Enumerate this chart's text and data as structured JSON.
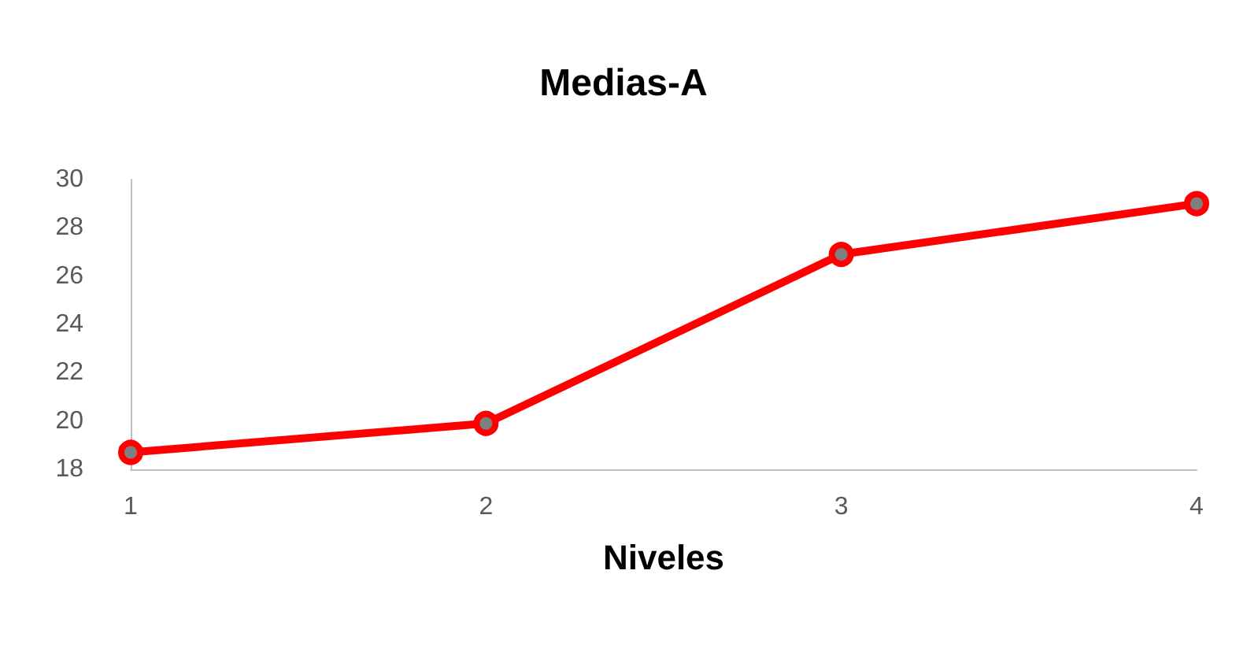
{
  "chart_data": {
    "type": "line",
    "title": "Medias-A",
    "xlabel": "Niveles",
    "categories": [
      "1",
      "2",
      "3",
      "4"
    ],
    "series": [
      {
        "color": "#ff0000",
        "values": [
          18.7,
          19.9,
          26.9,
          29.0
        ]
      }
    ],
    "ylim": [
      18,
      30
    ],
    "yticks": [
      18,
      20,
      22,
      24,
      26,
      28,
      30
    ],
    "grid": false,
    "marker": "circle",
    "line_style": "solid"
  }
}
